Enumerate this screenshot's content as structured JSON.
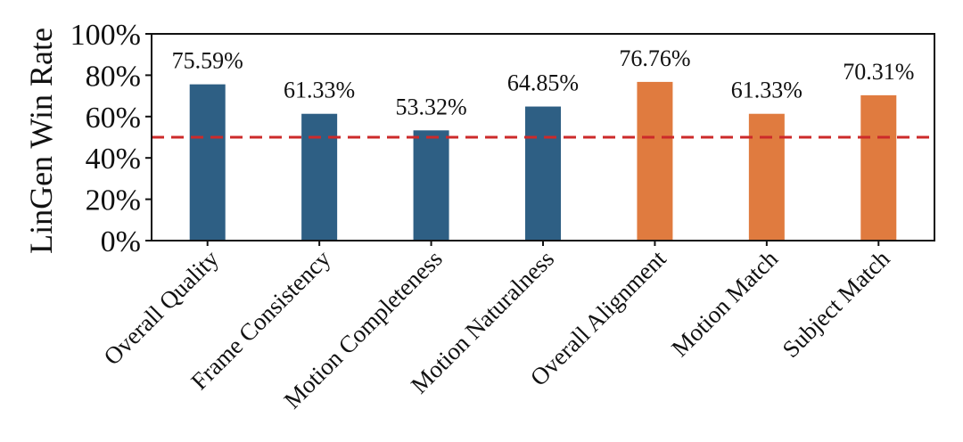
{
  "chart_data": {
    "type": "bar",
    "categories": [
      "Overall Quality",
      "Frame Consistency",
      "Motion Completeness",
      "Motion Naturalness",
      "Overall Alignment",
      "Motion Match",
      "Subject Match"
    ],
    "values": [
      75.59,
      61.33,
      53.32,
      64.85,
      76.76,
      61.33,
      70.31
    ],
    "value_labels": [
      "75.59%",
      "61.33%",
      "53.32%",
      "64.85%",
      "76.76%",
      "61.33%",
      "70.31%"
    ],
    "bar_colors": [
      "#2e5f84",
      "#2e5f84",
      "#2e5f84",
      "#2e5f84",
      "#e07b3f",
      "#e07b3f",
      "#e07b3f"
    ],
    "ylabel": "LinGen Win Rate",
    "xlabel": "",
    "ylim": [
      0,
      100
    ],
    "yticks": [
      0,
      20,
      40,
      60,
      80,
      100
    ],
    "ytick_labels": [
      "0%",
      "20%",
      "40%",
      "60%",
      "80%",
      "100%"
    ],
    "reference_line": {
      "value": 50,
      "color": "#cc2a2a",
      "style": "dashed"
    },
    "grid": false,
    "legend": "none"
  }
}
